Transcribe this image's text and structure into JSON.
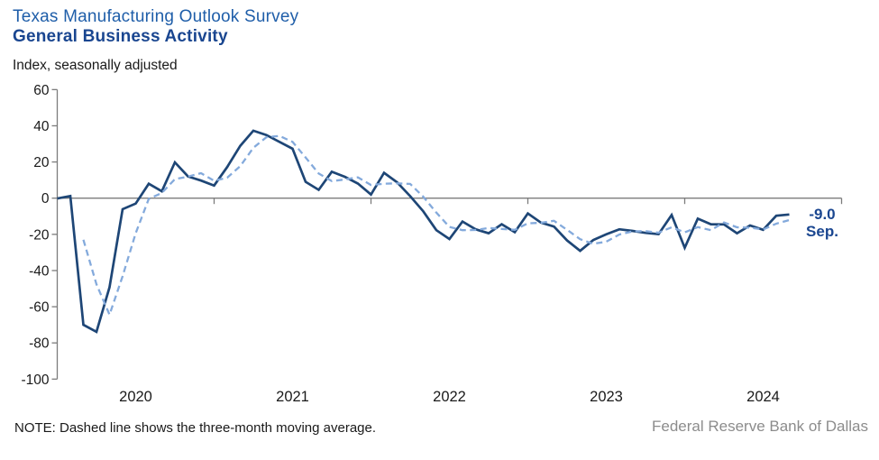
{
  "header": {
    "title": "Texas Manufacturing Outlook Survey",
    "subtitle": "General Business Activity",
    "axis_note": "Index, seasonally adjusted"
  },
  "annotation": {
    "value": "-9.0",
    "month": "Sep."
  },
  "footer": {
    "note": "NOTE: Dashed line shows the three-month moving average.",
    "source": "Federal Reserve Bank of Dallas"
  },
  "colors": {
    "title_blue": "#1F5EA9",
    "subtitle_navy": "#1A4690",
    "annotation_navy": "#1A4690",
    "line_solid": "#1E4676",
    "line_dashed": "#84AADC",
    "axis_gray": "#7C7C7C",
    "tick_text": "#1A1A1A",
    "source_gray": "#8C8C8C"
  },
  "chart_data": {
    "type": "line",
    "title": "Texas Manufacturing Outlook Survey — General Business Activity",
    "ylabel": "Index, seasonally adjusted",
    "ylim": [
      -100,
      60
    ],
    "y_ticks": [
      60,
      40,
      20,
      0,
      -20,
      -40,
      -60,
      -80,
      -100
    ],
    "grid": "zero-line-only",
    "legend": "none",
    "x_year_labels": [
      "2020",
      "2021",
      "2022",
      "2023",
      "2024"
    ],
    "x_axis_span": [
      "2020-01",
      "2025-01"
    ],
    "months": [
      "2020-01",
      "2020-02",
      "2020-03",
      "2020-04",
      "2020-05",
      "2020-06",
      "2020-07",
      "2020-08",
      "2020-09",
      "2020-10",
      "2020-11",
      "2020-12",
      "2021-01",
      "2021-02",
      "2021-03",
      "2021-04",
      "2021-05",
      "2021-06",
      "2021-07",
      "2021-08",
      "2021-09",
      "2021-10",
      "2021-11",
      "2021-12",
      "2022-01",
      "2022-02",
      "2022-03",
      "2022-04",
      "2022-05",
      "2022-06",
      "2022-07",
      "2022-08",
      "2022-09",
      "2022-10",
      "2022-11",
      "2022-12",
      "2023-01",
      "2023-02",
      "2023-03",
      "2023-04",
      "2023-05",
      "2023-06",
      "2023-07",
      "2023-08",
      "2023-09",
      "2023-10",
      "2023-11",
      "2023-12",
      "2024-01",
      "2024-02",
      "2024-03",
      "2024-04",
      "2024-05",
      "2024-06",
      "2024-07",
      "2024-08",
      "2024-09"
    ],
    "series": [
      {
        "name": "General Business Activity index",
        "style": "solid",
        "start_month": "2020-01",
        "values": [
          -0.2,
          1.2,
          -70.0,
          -73.9,
          -49.2,
          -6.1,
          -3.0,
          8.0,
          3.8,
          19.8,
          12.0,
          9.7,
          7.0,
          17.2,
          28.9,
          37.3,
          34.9,
          31.1,
          27.3,
          9.0,
          4.6,
          14.6,
          11.8,
          8.1,
          2.0,
          14.0,
          8.7,
          1.1,
          -7.3,
          -17.7,
          -22.6,
          -12.9,
          -17.2,
          -19.4,
          -14.4,
          -18.8,
          -8.4,
          -13.5,
          -15.7,
          -23.4,
          -29.1,
          -23.2,
          -20.0,
          -17.2,
          -18.1,
          -19.2,
          -19.9,
          -9.3,
          -27.4,
          -11.3,
          -14.4,
          -14.5,
          -19.4,
          -15.1,
          -17.5,
          -9.7,
          -9.0
        ]
      },
      {
        "name": "Three-month moving average",
        "style": "dashed",
        "start_month": "2020-03",
        "values": [
          -23.0,
          -47.6,
          -64.4,
          -43.1,
          -19.4,
          -0.4,
          2.9,
          10.5,
          11.9,
          13.8,
          9.6,
          11.3,
          17.7,
          27.8,
          33.7,
          34.4,
          31.1,
          22.5,
          13.6,
          9.4,
          10.3,
          11.5,
          7.3,
          8.0,
          8.2,
          7.9,
          0.8,
          -8.0,
          -15.9,
          -17.7,
          -17.6,
          -16.5,
          -17.0,
          -17.5,
          -13.9,
          -13.6,
          -12.5,
          -17.5,
          -22.7,
          -25.2,
          -24.1,
          -20.1,
          -18.4,
          -18.2,
          -19.1,
          -16.1,
          -18.9,
          -16.0,
          -17.7,
          -13.4,
          -16.1,
          -16.3,
          -17.3,
          -14.1,
          -12.1
        ]
      }
    ],
    "last_point": {
      "month": "2024-09",
      "value": -9.0,
      "label": "-9.0 Sep."
    }
  }
}
